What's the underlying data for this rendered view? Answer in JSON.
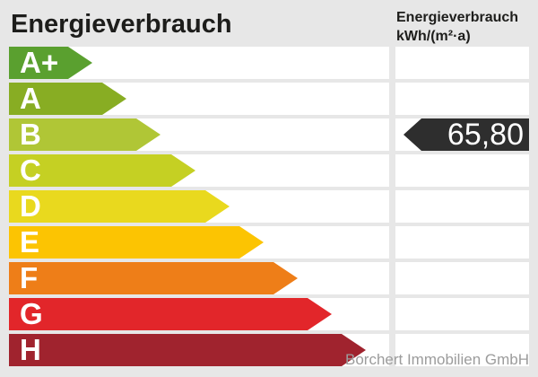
{
  "header": {
    "title": "Energieverbrauch",
    "unit_label_line1": "Energieverbrauch",
    "unit_label_line2": "kWh/(m²·a)"
  },
  "chart_data": {
    "type": "bar",
    "title": "Energieverbrauch",
    "unit": "kWh/(m²·a)",
    "categories": [
      "A+",
      "A",
      "B",
      "C",
      "D",
      "E",
      "F",
      "G",
      "H"
    ],
    "series": [
      {
        "name": "scale-step-length",
        "values": [
          1,
          2,
          3,
          4,
          5,
          6,
          7,
          8,
          9
        ]
      }
    ],
    "marker": {
      "value": 65.8,
      "value_label": "65,80",
      "category": "B"
    },
    "orientation": "horizontal",
    "legend": false
  },
  "scale": {
    "bands": [
      {
        "label": "A+",
        "color": "#5aa02f",
        "arrow_width": 93
      },
      {
        "label": "A",
        "color": "#88ad23",
        "arrow_width": 131
      },
      {
        "label": "B",
        "color": "#b0c636",
        "arrow_width": 169
      },
      {
        "label": "C",
        "color": "#c5d023",
        "arrow_width": 208
      },
      {
        "label": "D",
        "color": "#e9d91e",
        "arrow_width": 246
      },
      {
        "label": "E",
        "color": "#fcc402",
        "arrow_width": 284
      },
      {
        "label": "F",
        "color": "#ee7e18",
        "arrow_width": 322
      },
      {
        "label": "G",
        "color": "#e2262a",
        "arrow_width": 360
      },
      {
        "label": "H",
        "color": "#a0232e",
        "arrow_width": 398
      }
    ]
  },
  "marker": {
    "value_label": "65,80",
    "band": "B",
    "color": "#2e2e2e",
    "text_color": "#ffffff"
  },
  "watermark": {
    "text": "Borchert Immobilien GmbH"
  },
  "colors": {
    "background": "#e7e7e7",
    "cell": "#ffffff",
    "title_text": "#1d1d1b",
    "watermark_text": "#9c9c9c"
  }
}
